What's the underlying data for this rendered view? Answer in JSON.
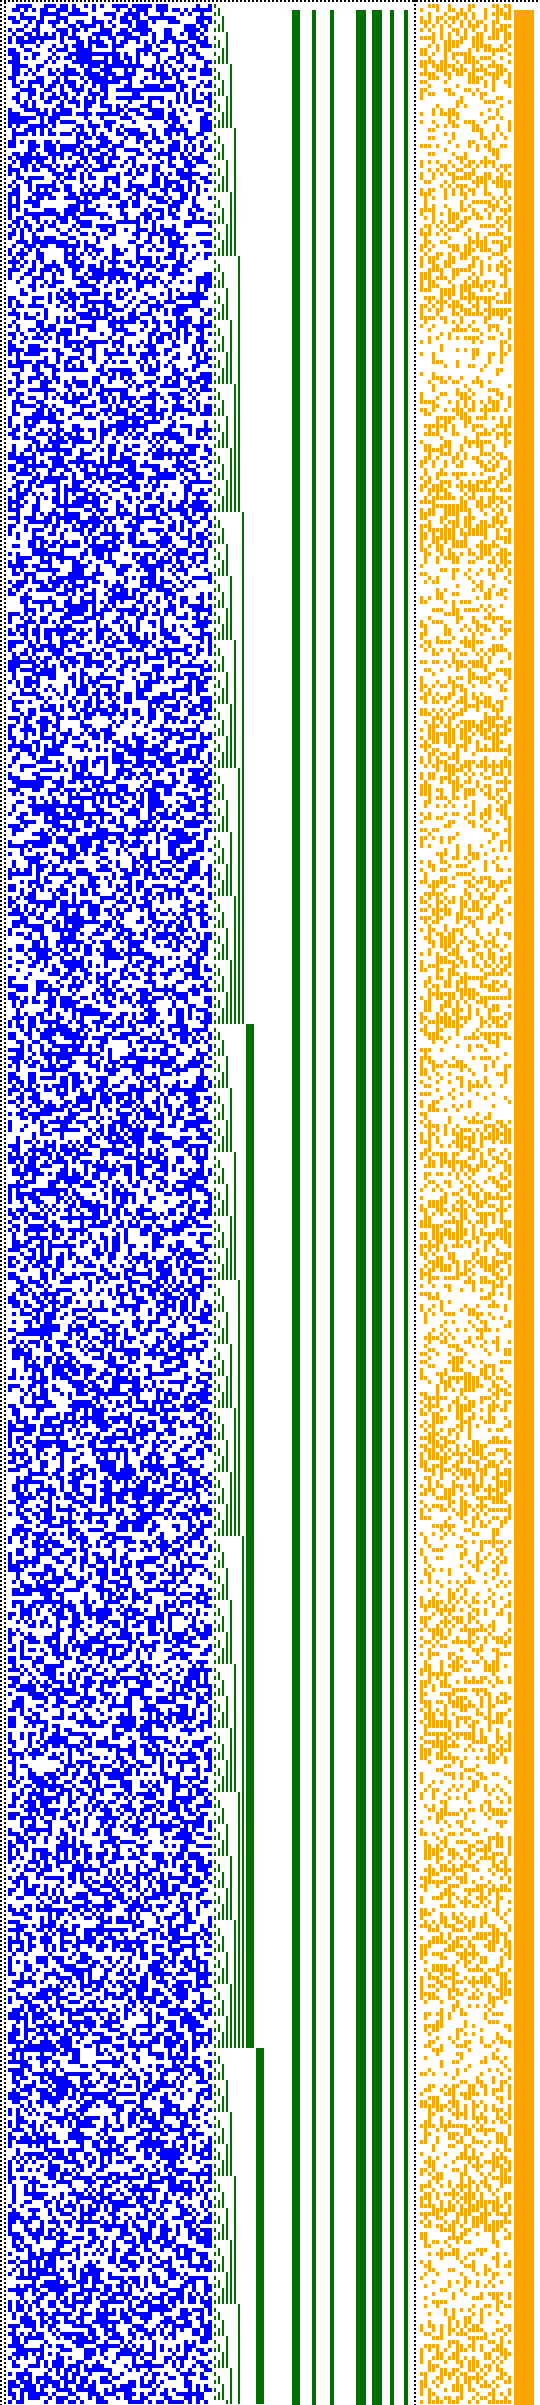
{
  "figure": {
    "description_free": true
  },
  "colors": {
    "background": "#ffffff",
    "random_bits": "#0000ff",
    "binary_counter": "#007000",
    "orange_pattern": "#ffa500",
    "dotted_border": "#000000"
  },
  "regions": [
    {
      "name": "left-dotted-border"
    },
    {
      "name": "blue-random-field"
    },
    {
      "name": "green-counter-staircase"
    },
    {
      "name": "green-vertical-stripes"
    },
    {
      "name": "center-dotted-separator"
    },
    {
      "name": "orange-pattern-field"
    },
    {
      "name": "right-solid-stripe"
    }
  ]
}
